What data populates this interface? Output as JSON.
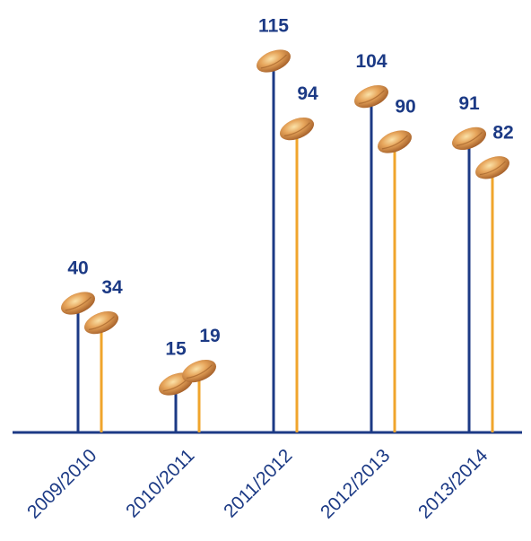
{
  "chart_data": {
    "type": "lollipop",
    "categories": [
      "2009/2010",
      "2010/2011",
      "2011/2012",
      "2012/2013",
      "2013/2014"
    ],
    "series": [
      {
        "color": "#1c3a85",
        "values": [
          40,
          15,
          115,
          104,
          91
        ]
      },
      {
        "color": "#f0a52c",
        "values": [
          34,
          19,
          94,
          90,
          82
        ]
      }
    ]
  }
}
